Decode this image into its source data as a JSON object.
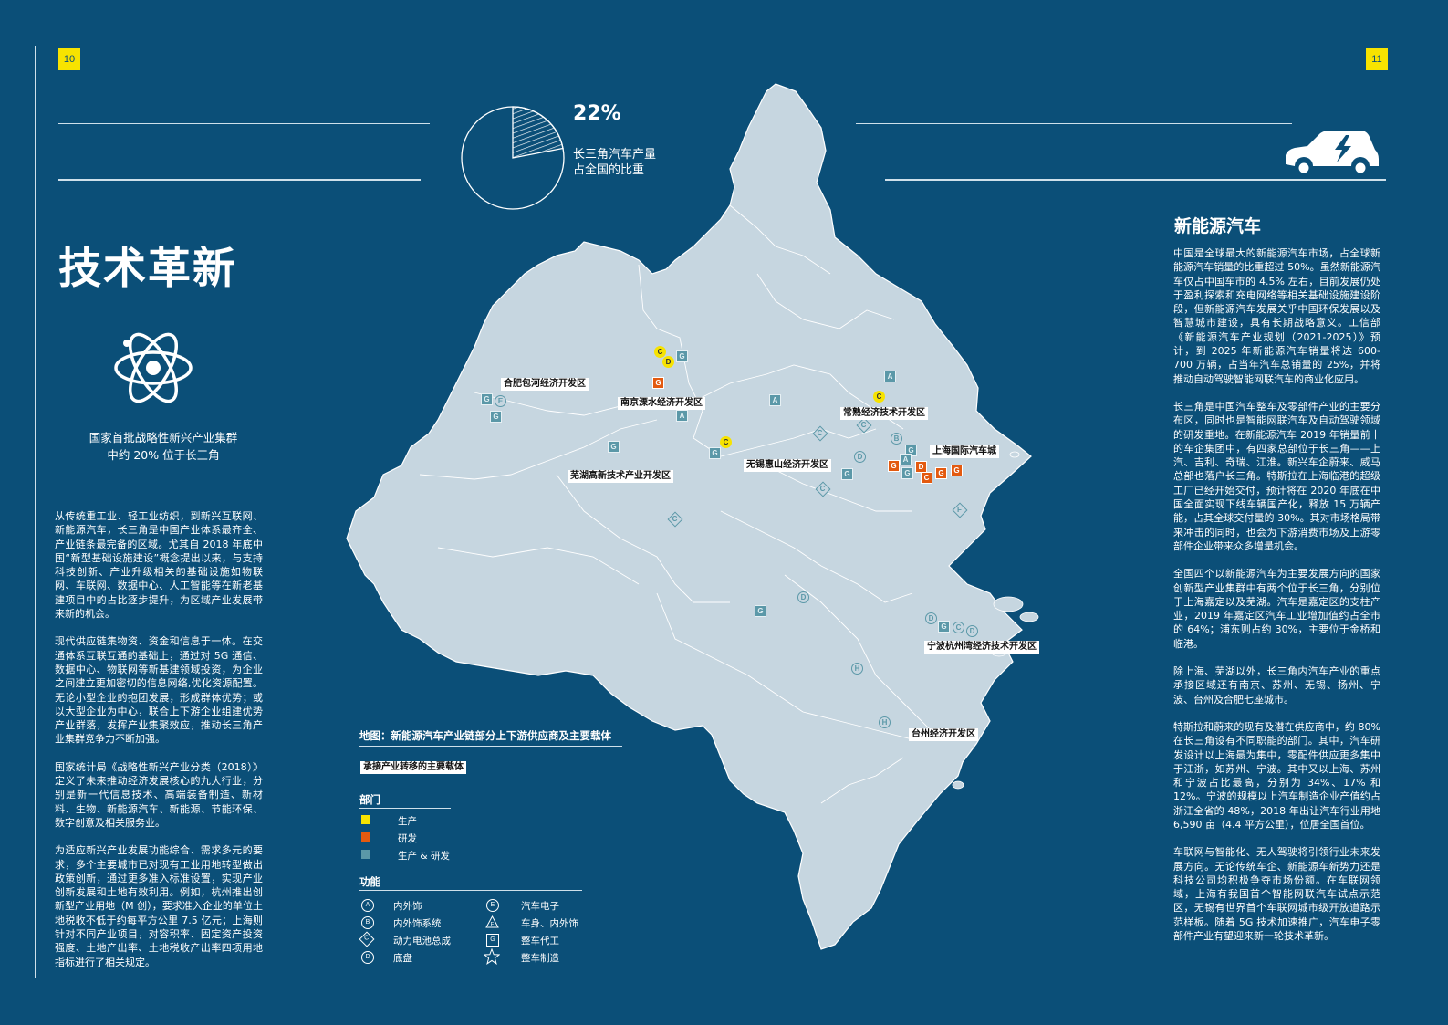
{
  "page": {
    "left_number": "10",
    "right_number": "11"
  },
  "left": {
    "title": "技术革新",
    "caption_line1": "国家首批战略性新兴产业集群",
    "caption_line2": "中约 20% 位于长三角",
    "paragraphs": [
      "从传统重工业、轻工业纺织，到新兴互联网、新能源汽车，长三角是中国产业体系最齐全、产业链条最完备的区域。尤其自 2018 年底中国“新型基础设施建设”概念提出以来，与支持科技创新、产业升级相关的基础设施如物联网、车联网、数据中心、人工智能等在新老基建项目中的占比逐步提升，为区域产业发展带来新的机会。",
      "现代供应链集物资、资金和信息于一体。在交通体系互联互通的基础上，通过对 5G 通信、数据中心、物联网等新基建领域投资，为企业之间建立更加密切的信息网络,优化资源配置。无论小型企业的抱团发展，形成群体优势；或以大型企业为中心，联合上下游企业组建优势产业群落，发挥产业集聚效应，推动长三角产业集群竞争力不断加强。",
      "国家统计局《战略性新兴产业分类（2018）》定义了未来推动经济发展核心的九大行业，分别是新一代信息技术、高端装备制造、新材料、生物、新能源汽车、新能源、节能环保、数字创意及相关服务业。",
      "为适应新兴产业发展功能综合、需求多元的要求，多个主要城市已对现有工业用地转型做出政策创新，通过更多准入标准设置，实现产业创新发展和土地有效利用。例如，杭州推出创新型产业用地（M 创），要求准入企业的单位土地税收不低于约每平方公里 7.5 亿元；上海则针对不同产业项目，对容积率、固定资产投资强度、土地产出率、土地税收产出率四项用地指标进行了相关规定。"
    ]
  },
  "stat": {
    "value": "22%",
    "label_line1": "长三角汽车产量",
    "label_line2": "占全国的比重",
    "share": 0.22
  },
  "right": {
    "heading": "新能源汽车",
    "paragraphs": [
      "中国是全球最大的新能源汽车市场，占全球新能源汽车销量的比重超过 50%。虽然新能源汽车仅占中国车市的 4.5% 左右，目前发展仍处于盈利探索和充电网络等相关基础设施建设阶段，但新能源汽车发展关乎中国环保发展以及智慧城市建设，具有长期战略意义。工信部《新能源汽车产业规划（2021-2025）》预计，到 2025 年新能源汽车销量将达 600-700 万辆，占当年汽车总销量的 25%，并将推动自动驾驶智能网联汽车的商业化应用。",
      "长三角是中国汽车整车及零部件产业的主要分布区，同时也是智能网联汽车及自动驾驶领域的研发重地。在新能源汽车 2019 年销量前十的车企集团中，有四家总部位于长三角——上汽、吉利、奇瑞、江淮。新兴车企蔚来、威马总部也落户长三角。特斯拉在上海临港的超级工厂已经开始交付，预计将在 2020 年底在中国全面实现下线车辆国产化，释放 15 万辆产能，占其全球交付量的 30%。其对市场格局带来冲击的同时，也会为下游消费市场及上游零部件企业带来众多增量机会。",
      "全国四个以新能源汽车为主要发展方向的国家创新型产业集群中有两个位于长三角，分别位于上海嘉定以及芜湖。汽车是嘉定区的支柱产业，2019 年嘉定区汽车工业增加值约占全市的 64%；浦东则占约 30%，主要位于金桥和临港。",
      "除上海、芜湖以外，长三角内汽车产业的重点承接区域还有南京、苏州、无锡、扬州、宁波、台州及合肥七座城市。",
      "特斯拉和蔚来的现有及潜在供应商中，约 80% 在长三角设有不同职能的部门。其中，汽车研发设计以上海最为集中，零配件供应更多集中于江浙，如苏州、宁波。其中又以上海、苏州和宁波占比最高，分别为 34%、17% 和 12%。宁波的规模以上汽车制造企业产值约占浙江全省的 48%，2018 年出让汽车行业用地 6,590 亩（4.4 平方公里），位居全国首位。",
      "车联网与智能化、无人驾驶将引领行业未来发展方向。无论传统车企、新能源车新势力还是科技公司均积极争夺市场份额。在车联网领域，上海有我国首个智能网联汽车试点示范区，无锡有世界首个车联网城市级开放道路示范样板。随着 5G 技术加速推广，汽车电子零部件产业有望迎来新一轮技术革新。"
    ]
  },
  "map": {
    "title": "地图：新能源汽车产业链部分上下游供应商及主要载体",
    "zone_legend": "承接产业转移的主要载体",
    "zones": [
      "合肥包河经济开发区",
      "南京溧水经济开发区",
      "常熟经济技术开发区",
      "上海国际汽车城",
      "无锡惠山经济开发区",
      "芜湖高新技术产业开发区",
      "宁波杭州湾经济技术开发区",
      "台州经济开发区"
    ],
    "department_heading": "部门",
    "departments": [
      {
        "label": "生产",
        "color": "#f7e300"
      },
      {
        "label": "研发",
        "color": "#e35a10"
      },
      {
        "label": "生产 & 研发",
        "color": "#5b98a8"
      }
    ],
    "function_heading": "功能",
    "functions": [
      {
        "code": "A",
        "label": "内外饰"
      },
      {
        "code": "B",
        "label": "内外饰系统"
      },
      {
        "code": "C",
        "label": "动力电池总成"
      },
      {
        "code": "D",
        "label": "底盘"
      },
      {
        "code": "E",
        "label": "汽车电子"
      },
      {
        "code": "F",
        "label": "车身、内外饰"
      },
      {
        "code": "G",
        "label": "整车代工"
      },
      {
        "code": "H",
        "label": "整车制造"
      }
    ]
  },
  "icons": [
    "atom-icon",
    "car-lightning-icon",
    "pie-chart-icon"
  ]
}
